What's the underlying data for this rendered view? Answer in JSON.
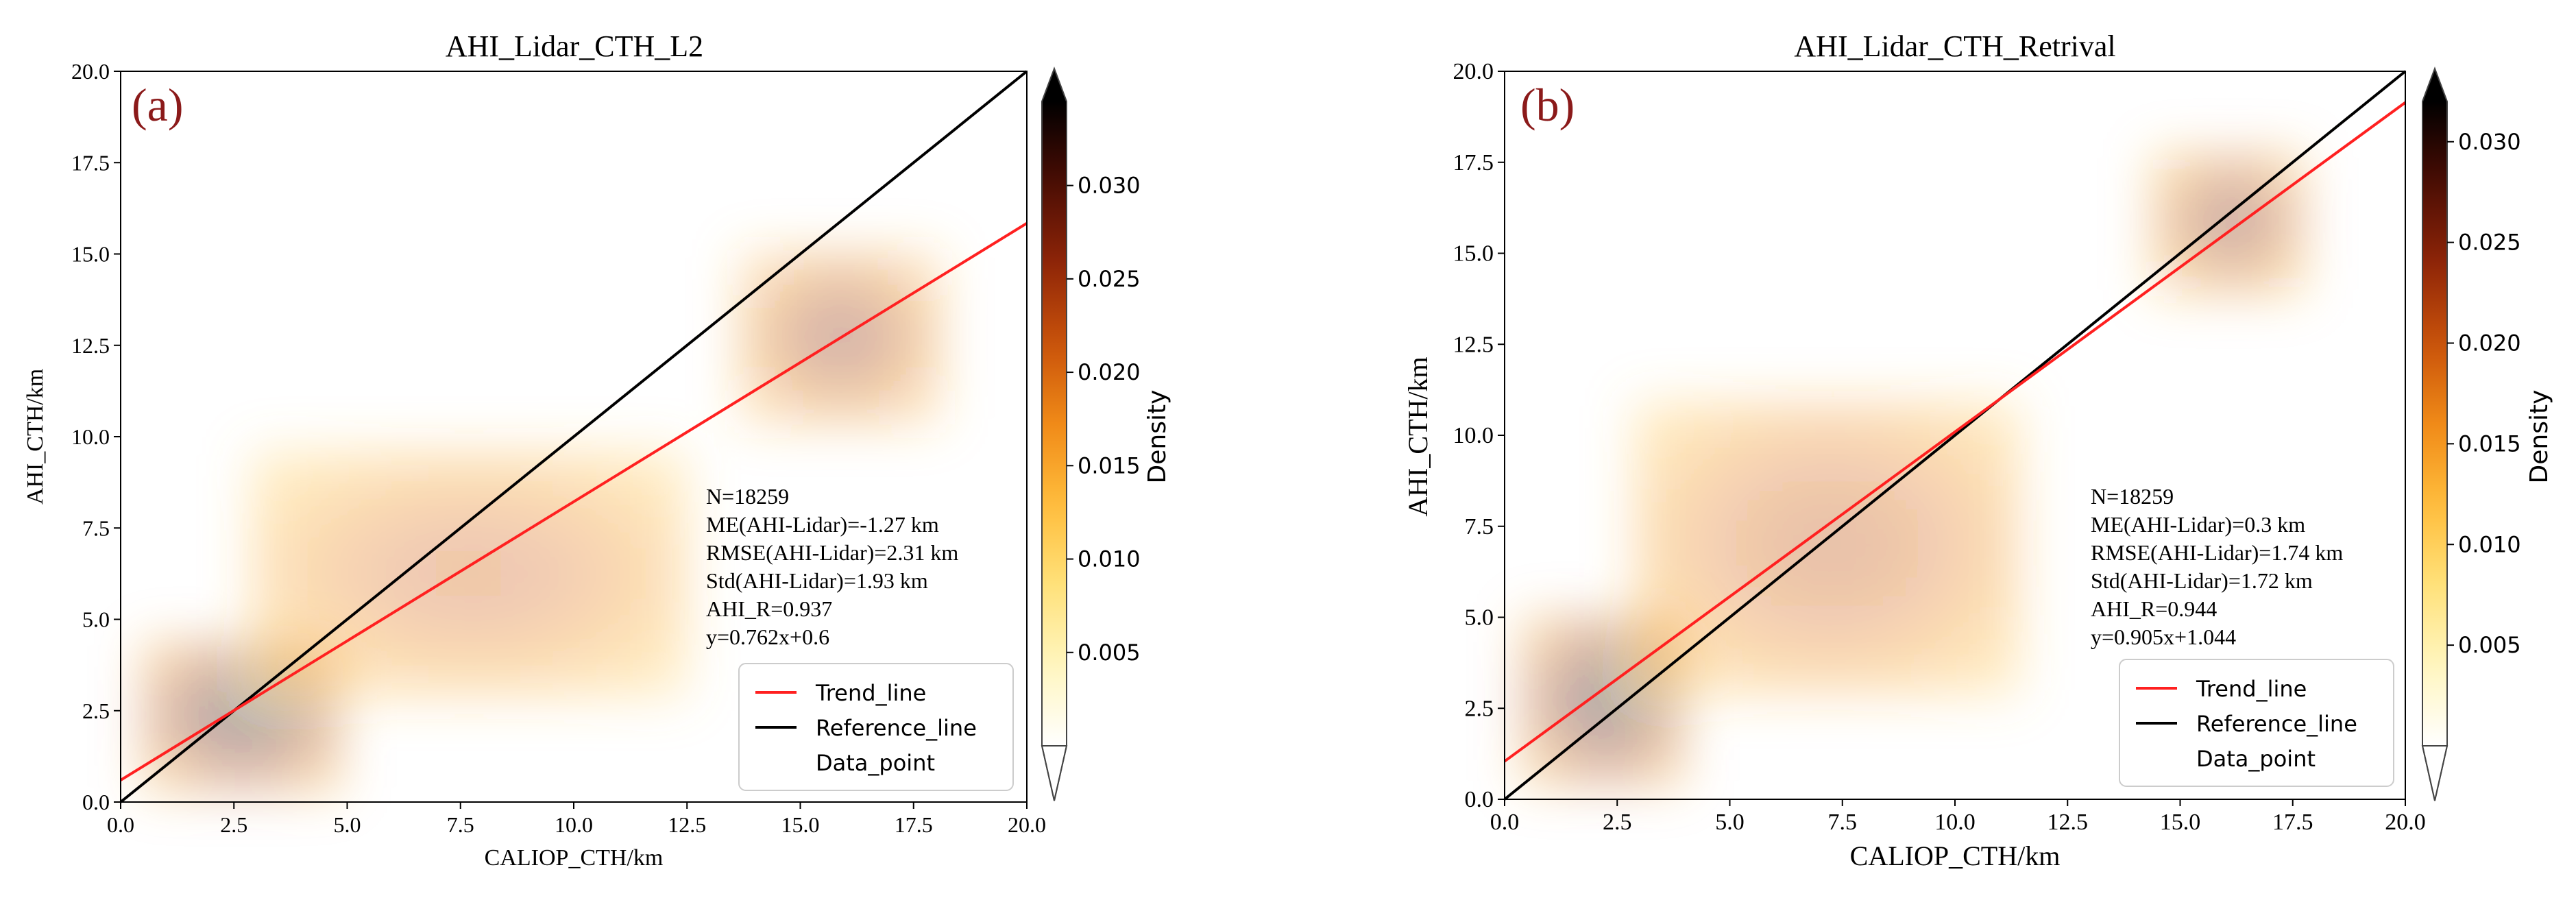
{
  "chart_data": [
    {
      "type": "scatter",
      "panel_label": "(a)",
      "title": "AHI_Lidar_CTH_L2",
      "xlabel": "CALIOP_CTH/km",
      "ylabel": "AHI_CTH/km",
      "xlim": [
        0,
        20
      ],
      "ylim": [
        0,
        20
      ],
      "xticks": [
        "0.0",
        "2.5",
        "5.0",
        "7.5",
        "10.0",
        "12.5",
        "15.0",
        "17.5",
        "20.0"
      ],
      "yticks": [
        "0.0",
        "2.5",
        "5.0",
        "7.5",
        "10.0",
        "12.5",
        "15.0",
        "17.5",
        "20.0"
      ],
      "stats": [
        "N=18259",
        "ME(AHI-Lidar)=-1.27 km",
        "RMSE(AHI-Lidar)=2.31 km",
        "Std(AHI-Lidar)=1.93 km",
        "AHI_R=0.937",
        "y=0.762x+0.6"
      ],
      "trend": {
        "slope": 0.762,
        "intercept": 0.6
      },
      "reference": {
        "slope": 1,
        "intercept": 0
      },
      "legend": [
        "Trend_line",
        "Reference_line",
        "Data_point"
      ],
      "density_clusters": [
        {
          "x": [
            0.6,
            4.8
          ],
          "y": [
            0.4,
            4.4
          ],
          "peak": 1.0
        },
        {
          "x": [
            3.0,
            12.5
          ],
          "y": [
            3.0,
            9.5
          ],
          "peak": 0.55
        },
        {
          "x": [
            13.8,
            18.0
          ],
          "y": [
            10.5,
            15.0
          ],
          "peak": 0.75
        }
      ],
      "colorbar": {
        "label": "Density",
        "ticks": [
          "0.005",
          "0.010",
          "0.015",
          "0.020",
          "0.025",
          "0.030"
        ],
        "tick_values": [
          0.005,
          0.01,
          0.015,
          0.02,
          0.025,
          0.03
        ],
        "range": [
          0,
          0.0345
        ]
      }
    },
    {
      "type": "scatter",
      "panel_label": "(b)",
      "title": "AHI_Lidar_CTH_Retrival",
      "xlabel": "CALIOP_CTH/km",
      "ylabel": "AHI_CTH/km",
      "xlim": [
        0,
        20
      ],
      "ylim": [
        0,
        20
      ],
      "xticks": [
        "0.0",
        "2.5",
        "5.0",
        "7.5",
        "10.0",
        "12.5",
        "15.0",
        "17.5",
        "20.0"
      ],
      "yticks": [
        "0.0",
        "2.5",
        "5.0",
        "7.5",
        "10.0",
        "12.5",
        "15.0",
        "17.5",
        "20.0"
      ],
      "stats": [
        "N=18259",
        "ME(AHI-Lidar)=0.3 km",
        "RMSE(AHI-Lidar)=1.74 km",
        "Std(AHI-Lidar)=1.72 km",
        "AHI_R=0.944",
        "y=0.905x+1.044"
      ],
      "trend": {
        "slope": 0.905,
        "intercept": 1.044
      },
      "reference": {
        "slope": 1,
        "intercept": 0
      },
      "legend": [
        "Trend_line",
        "Reference_line",
        "Data_point"
      ],
      "density_clusters": [
        {
          "x": [
            0.5,
            4.0
          ],
          "y": [
            0.5,
            5.0
          ],
          "peak": 1.0
        },
        {
          "x": [
            3.0,
            11.5
          ],
          "y": [
            3.0,
            11.0
          ],
          "peak": 0.6
        },
        {
          "x": [
            14.5,
            17.8
          ],
          "y": [
            14.0,
            17.8
          ],
          "peak": 0.8
        }
      ],
      "colorbar": {
        "label": "Density",
        "ticks": [
          "0.005",
          "0.010",
          "0.015",
          "0.020",
          "0.025",
          "0.030"
        ],
        "tick_values": [
          0.005,
          0.01,
          0.015,
          0.02,
          0.025,
          0.03
        ],
        "range": [
          0,
          0.032
        ]
      }
    }
  ],
  "colors": {
    "trend_line": "#ff2020",
    "reference_line": "#000000",
    "label_color": "#8b1a1a",
    "cmap": [
      "#ffffff",
      "#fff6bf",
      "#ffe17a",
      "#ffbd3c",
      "#f08a18",
      "#c9520a",
      "#8e2508",
      "#4a0d04",
      "#000000"
    ]
  }
}
